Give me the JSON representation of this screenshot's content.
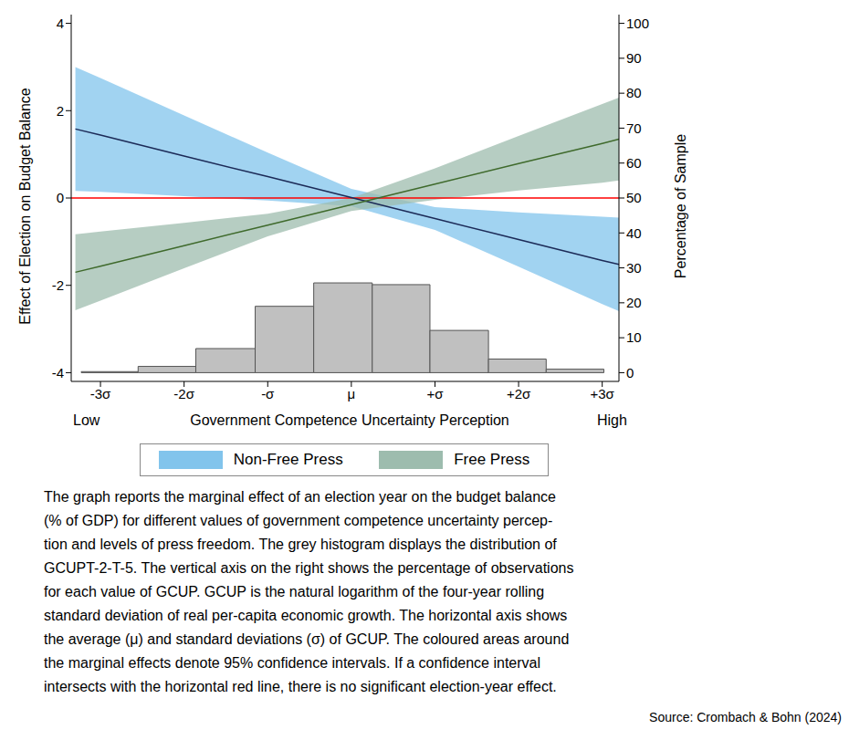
{
  "chart_data": {
    "type": "line_band",
    "x_label": "Government Competence Uncertainty Perception",
    "x_low_label": "Low",
    "x_high_label": "High",
    "y_label": "Effect of Election on Budget Balance",
    "y2_label": "Percentage of Sample",
    "x": [
      -3.3,
      -3,
      -2,
      -1,
      0,
      1,
      2,
      3,
      3.2
    ],
    "series": [
      {
        "name": "Non-Free Press",
        "color": "#82c4ec",
        "values": [
          1.58,
          1.44,
          0.96,
          0.49,
          0.01,
          -0.47,
          -0.95,
          -1.43,
          -1.52
        ],
        "lower": [
          0.16,
          0.14,
          0.04,
          -0.06,
          -0.19,
          -0.73,
          -1.57,
          -2.43,
          -2.59
        ],
        "upper": [
          3.0,
          2.75,
          1.89,
          1.04,
          0.21,
          -0.21,
          -0.33,
          -0.43,
          -0.45
        ]
      },
      {
        "name": "Free Press",
        "color": "#9dbcae",
        "values": [
          -1.7,
          -1.56,
          -1.09,
          -0.62,
          -0.15,
          0.32,
          0.79,
          1.25,
          1.35
        ],
        "lower": [
          -2.57,
          -2.35,
          -1.61,
          -0.88,
          -0.3,
          -0.04,
          0.17,
          0.35,
          0.4
        ],
        "upper": [
          -0.83,
          -0.77,
          -0.57,
          -0.36,
          0.0,
          0.68,
          1.42,
          2.15,
          2.3
        ]
      }
    ],
    "histogram": {
      "bins": [
        -3.23,
        -2.55,
        -1.86,
        -1.15,
        -0.45,
        0.25,
        0.94,
        1.64,
        2.33,
        3.02
      ],
      "counts": [
        0.3,
        1.8,
        6.9,
        19.0,
        25.7,
        25.2,
        12.1,
        3.9,
        1.0
      ],
      "color": "#c0c0c0",
      "axis": "y2"
    },
    "reference_y": 0,
    "reference_color": "#ff0000",
    "xlim": [
      -3.35,
      3.2
    ],
    "xticks": [
      {
        "value": -3,
        "label": "-3σ"
      },
      {
        "value": -2,
        "label": "-2σ"
      },
      {
        "value": -1,
        "label": "-σ"
      },
      {
        "value": 0,
        "label": "μ"
      },
      {
        "value": 1,
        "label": "+σ"
      },
      {
        "value": 2,
        "label": "+2σ"
      },
      {
        "value": 3,
        "label": "+3σ"
      }
    ],
    "ylim": [
      -4.2,
      4.2
    ],
    "yticks": [
      -4,
      -2,
      0,
      2,
      4
    ],
    "y2lim": [
      -2.5,
      102.5
    ],
    "y2ticks": [
      0,
      10,
      20,
      30,
      40,
      50,
      60,
      70,
      80,
      90,
      100
    ],
    "legend": "bottom",
    "grid": false,
    "caption": [
      "The graph reports the marginal effect of an election year on the budget balance",
      "(% of GDP) for different values of government competence uncertainty percep-",
      "tion and levels of press freedom. The grey histogram displays the distribution of",
      "GCUPT-2-T-5. The vertical axis on the right shows the percentage of observations",
      "for each value of GCUP. GCUP is the natural logarithm of the four-year rolling",
      "standard deviation of real per-capita economic growth. The horizontal axis shows",
      "the average (μ) and standard deviations (σ) of GCUP. The coloured areas around",
      "the marginal effects denote 95% confidence intervals. If a confidence interval",
      "intersects with the horizontal red line, there is no significant election-year effect."
    ],
    "source": "Source: Crombach & Bohn (2024)"
  }
}
